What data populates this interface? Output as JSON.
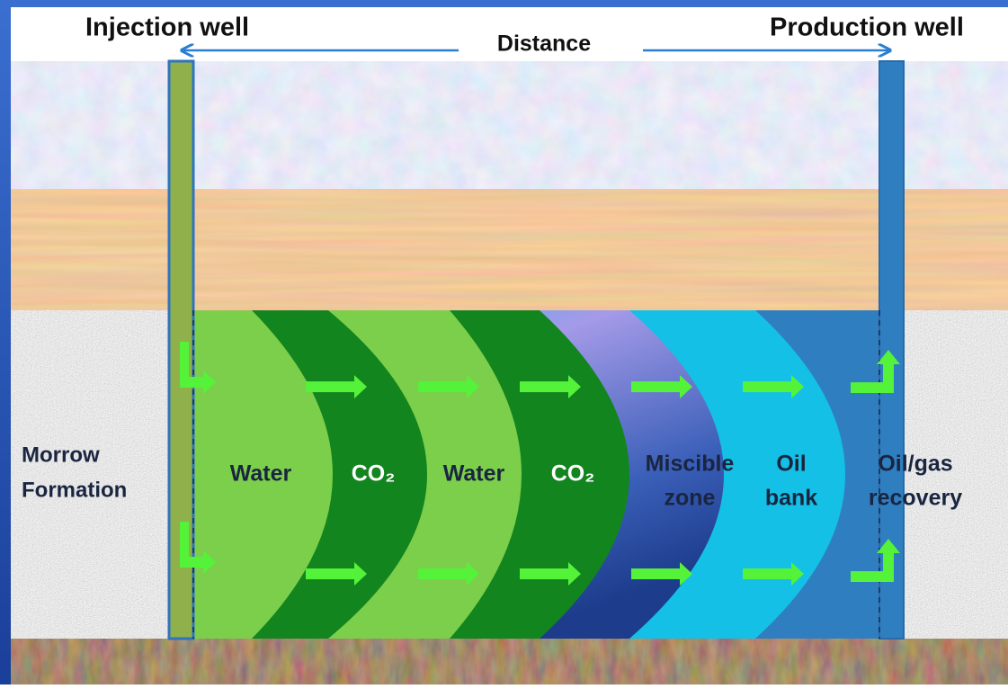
{
  "header": {
    "injection_well": "Injection well",
    "production_well": "Production well",
    "distance": "Distance"
  },
  "formation": {
    "label": [
      "Morrow",
      "Formation"
    ]
  },
  "zones": [
    {
      "label": [
        "Water"
      ]
    },
    {
      "label": [
        "CO₂"
      ]
    },
    {
      "label": [
        "Water"
      ]
    },
    {
      "label": [
        "CO₂"
      ]
    },
    {
      "label": [
        "Miscible",
        "zone"
      ]
    },
    {
      "label": [
        "Oil",
        "bank"
      ]
    },
    {
      "label": [
        "Oil/gas",
        "recovery"
      ]
    }
  ]
}
